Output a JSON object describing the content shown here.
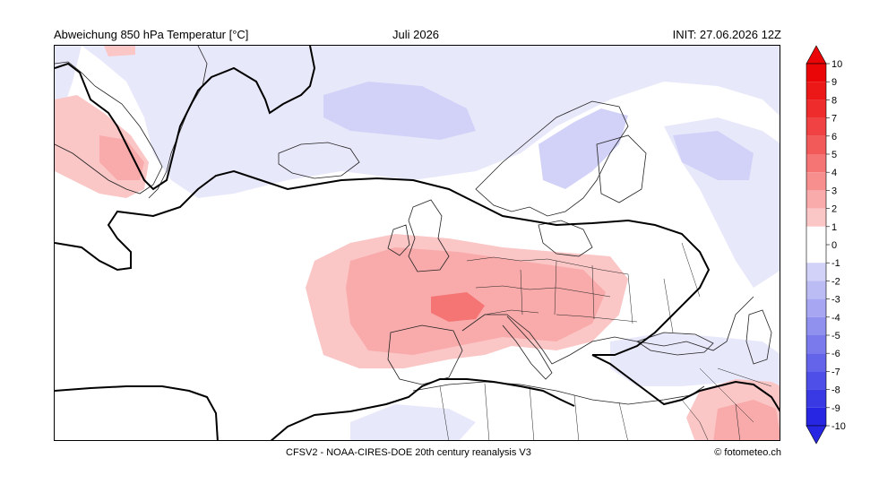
{
  "header": {
    "title_left": "Abweichung 850 hPa Temperatur [°C]",
    "title_center": "Juli 2026",
    "title_right": "INIT: 27.06.2026 12Z"
  },
  "footer": {
    "source": "CFSV2 - NOAA-CIRES-DOE 20th century reanalysis V3",
    "credit": "© fotometeo.ch"
  },
  "colors": {
    "warm": [
      "#fde0e0",
      "#fbc6c6",
      "#f9aaaa",
      "#f78f8f",
      "#f57474",
      "#f25a5a",
      "#f04242",
      "#ee2c2c",
      "#ec1818",
      "#ea0606"
    ],
    "cold": [
      "#e8e8fb",
      "#d2d2f8",
      "#bcbcf5",
      "#a6a6f2",
      "#9090ef",
      "#7a7aed",
      "#6464ea",
      "#4e4ee8",
      "#3a3ae5",
      "#2626e3"
    ],
    "neutral": "#ffffff",
    "land_outline": "#222222",
    "zero_contour": "#000000"
  },
  "colorbar": {
    "ticks": [
      "10",
      "9",
      "8",
      "7",
      "6",
      "5",
      "4",
      "3",
      "2",
      "1",
      "0",
      "-1",
      "-2",
      "-3",
      "-4",
      "-5",
      "-6",
      "-7",
      "-8",
      "-9",
      "-10"
    ],
    "min": -10,
    "max": 10,
    "step": 1
  }
}
